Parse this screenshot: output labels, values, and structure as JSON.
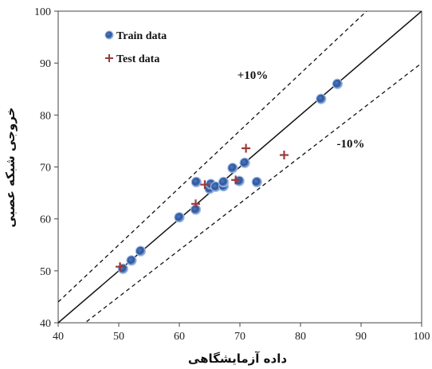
{
  "chart_data": {
    "type": "scatter",
    "xlabel": "داده آزمایشگاهی",
    "ylabel": "خروجی شبکه عصبی",
    "xlim": [
      40,
      100
    ],
    "ylim": [
      40,
      100
    ],
    "xticks": [
      40,
      50,
      60,
      70,
      80,
      90,
      100
    ],
    "yticks": [
      40,
      50,
      60,
      70,
      80,
      90,
      100
    ],
    "legend_position": "top-left",
    "series": [
      {
        "name": "Train data",
        "marker": "circle",
        "color": "#2f5597",
        "points": [
          [
            50.7,
            50.4
          ],
          [
            52.1,
            52.0
          ],
          [
            53.6,
            53.8
          ],
          [
            60.0,
            60.3
          ],
          [
            62.7,
            61.8
          ],
          [
            62.8,
            67.1
          ],
          [
            65.0,
            65.8
          ],
          [
            65.2,
            66.7
          ],
          [
            66.0,
            66.2
          ],
          [
            67.3,
            66.3
          ],
          [
            67.3,
            67.1
          ],
          [
            68.8,
            69.8
          ],
          [
            69.9,
            67.3
          ],
          [
            70.8,
            70.8
          ],
          [
            72.8,
            67.1
          ],
          [
            83.4,
            83.1
          ],
          [
            86.1,
            86.0
          ]
        ]
      },
      {
        "name": "Test data",
        "marker": "plus",
        "color": "#9b3a3a",
        "points": [
          [
            50.2,
            50.8
          ],
          [
            62.7,
            62.9
          ],
          [
            64.2,
            66.6
          ],
          [
            69.3,
            67.5
          ],
          [
            71.0,
            73.6
          ],
          [
            77.3,
            72.3
          ]
        ]
      }
    ],
    "reference_lines": [
      {
        "label": "",
        "slope": 1.0,
        "style": "solid"
      },
      {
        "label": "+10%",
        "slope": 1.1,
        "style": "dashed"
      },
      {
        "label": "-10%",
        "slope": 0.9,
        "style": "dashed"
      }
    ]
  }
}
